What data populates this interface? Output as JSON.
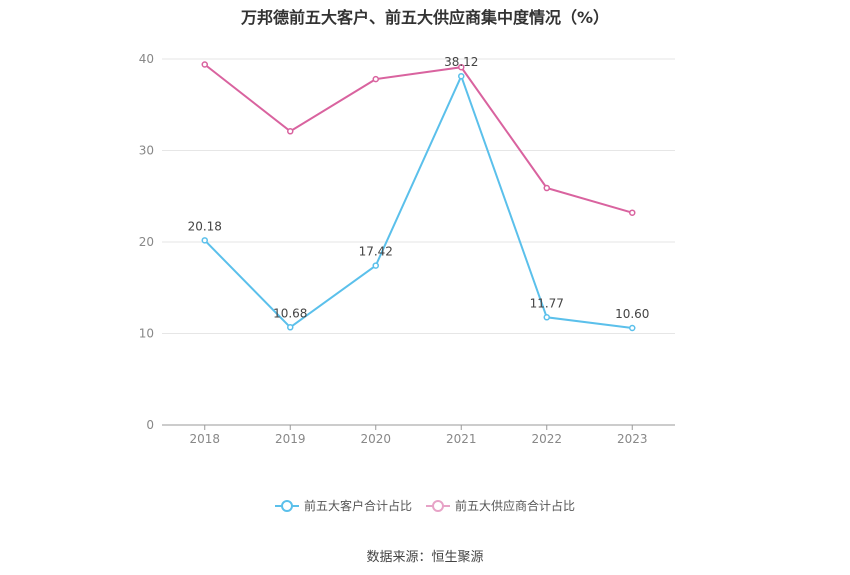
{
  "title": "万邦德前五大客户、前五大供应商集中度情况（%）",
  "source": "数据来源：恒生聚源",
  "chart_data": {
    "type": "line",
    "x": [
      "2018",
      "2019",
      "2020",
      "2021",
      "2022",
      "2023"
    ],
    "ylim": [
      0,
      40
    ],
    "yticks": [
      0,
      10,
      20,
      30,
      40
    ],
    "grid": true,
    "legend_position": "bottom-center",
    "series": [
      {
        "name": "前五大客户合计占比",
        "color": "#5bc0eb",
        "values": [
          20.18,
          10.68,
          17.42,
          38.12,
          11.77,
          10.6
        ],
        "labels": [
          "20.18",
          "10.68",
          "17.42",
          "38.12",
          "11.77",
          "10.60"
        ]
      },
      {
        "name": "前五大供应商合计占比",
        "color": "#d9639f",
        "values": [
          39.4,
          32.1,
          37.8,
          39.1,
          25.9,
          23.2
        ]
      }
    ]
  }
}
